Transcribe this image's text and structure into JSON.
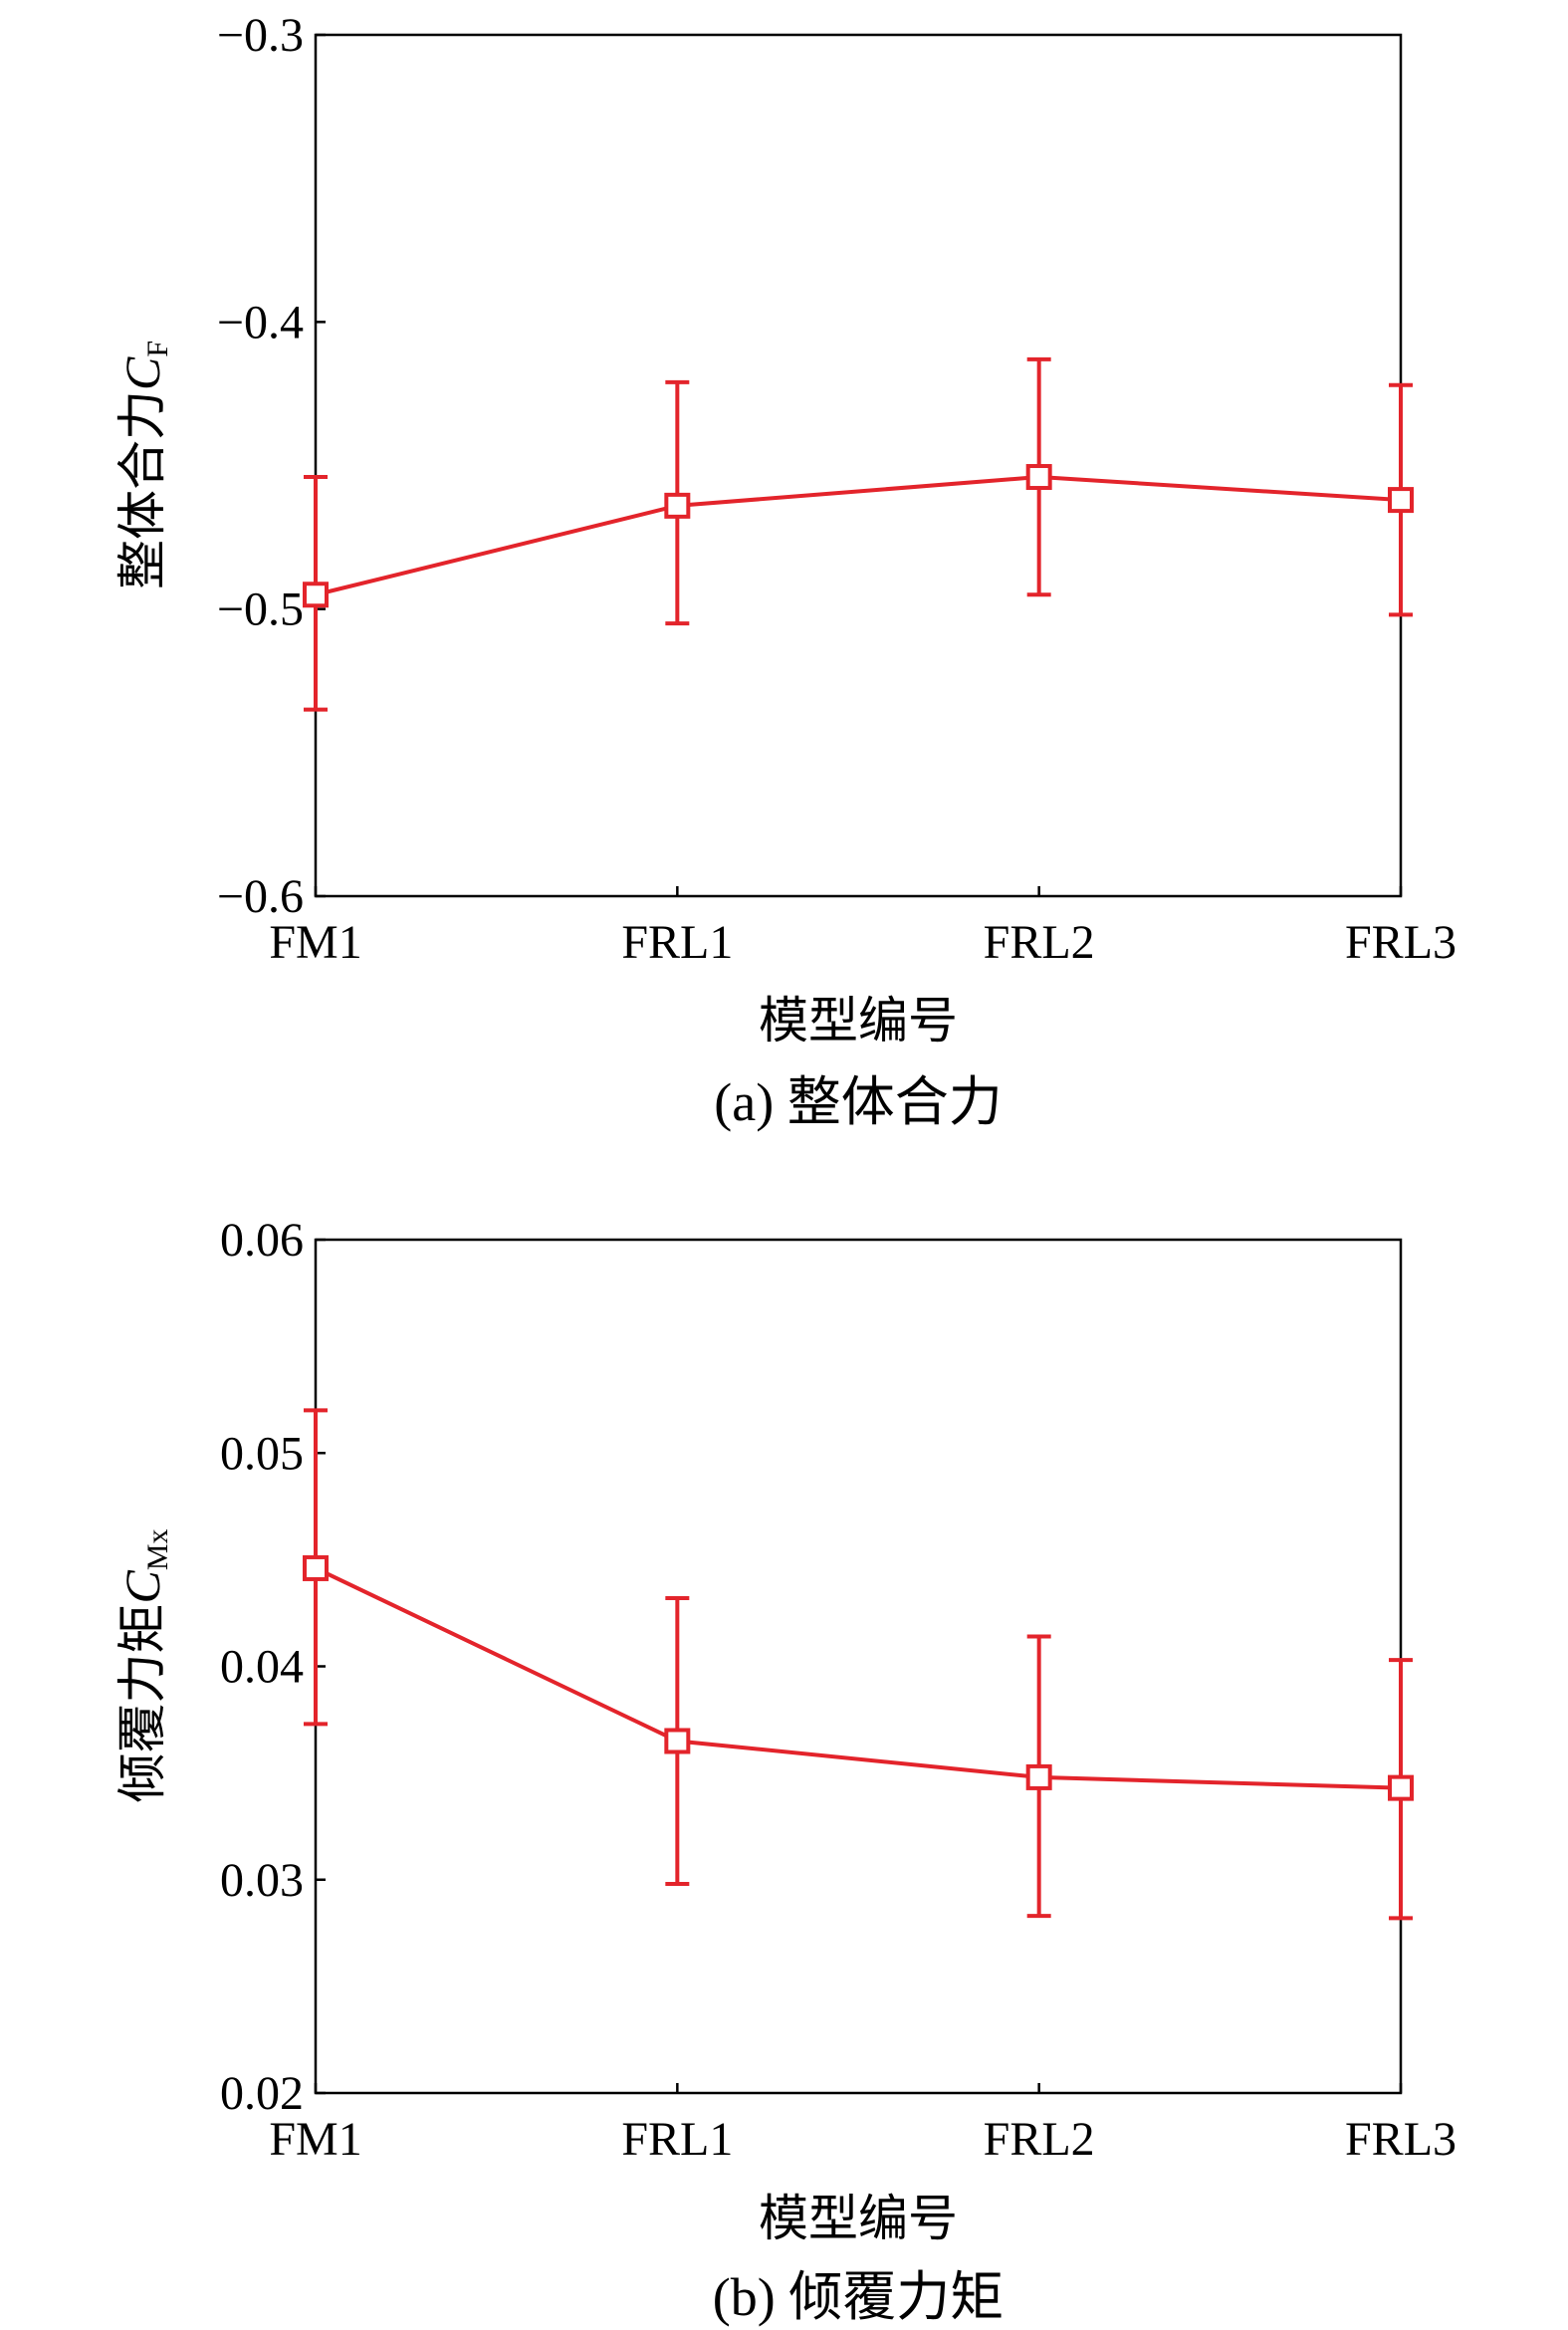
{
  "series_color": "#e3242b",
  "chart_data": [
    {
      "type": "line",
      "caption": "(a) 整体合力",
      "xlabel": "模型编号",
      "ylabel": "整体合力",
      "ylabel_symbol": "C",
      "ylabel_subscript": "F",
      "categories": [
        "FM1",
        "FRL1",
        "FRL2",
        "FRL3"
      ],
      "values": [
        -0.495,
        -0.464,
        -0.454,
        -0.462
      ],
      "error_upper": [
        -0.454,
        -0.421,
        -0.413,
        -0.422
      ],
      "error_lower": [
        -0.535,
        -0.505,
        -0.495,
        -0.502
      ],
      "ylim": [
        -0.6,
        -0.3
      ],
      "yticks": [
        -0.6,
        -0.5,
        -0.4,
        -0.3
      ],
      "ytick_labels": [
        "−0.6",
        "−0.5",
        "−0.4",
        "−0.3"
      ],
      "grid": false
    },
    {
      "type": "line",
      "caption": "(b) 倾覆力矩",
      "xlabel": "模型编号",
      "ylabel": "倾覆力矩",
      "ylabel_symbol": "C",
      "ylabel_subscript": "Mx",
      "categories": [
        "FM1",
        "FRL1",
        "FRL2",
        "FRL3"
      ],
      "values": [
        0.0446,
        0.0365,
        0.0348,
        0.0343
      ],
      "error_upper": [
        0.052,
        0.0432,
        0.0414,
        0.0403
      ],
      "error_lower": [
        0.0373,
        0.0298,
        0.0283,
        0.0282
      ],
      "ylim": [
        0.02,
        0.06
      ],
      "yticks": [
        0.02,
        0.03,
        0.04,
        0.05,
        0.06
      ],
      "ytick_labels": [
        "0.02",
        "0.03",
        "0.04",
        "0.05",
        "0.06"
      ],
      "grid": false
    }
  ]
}
